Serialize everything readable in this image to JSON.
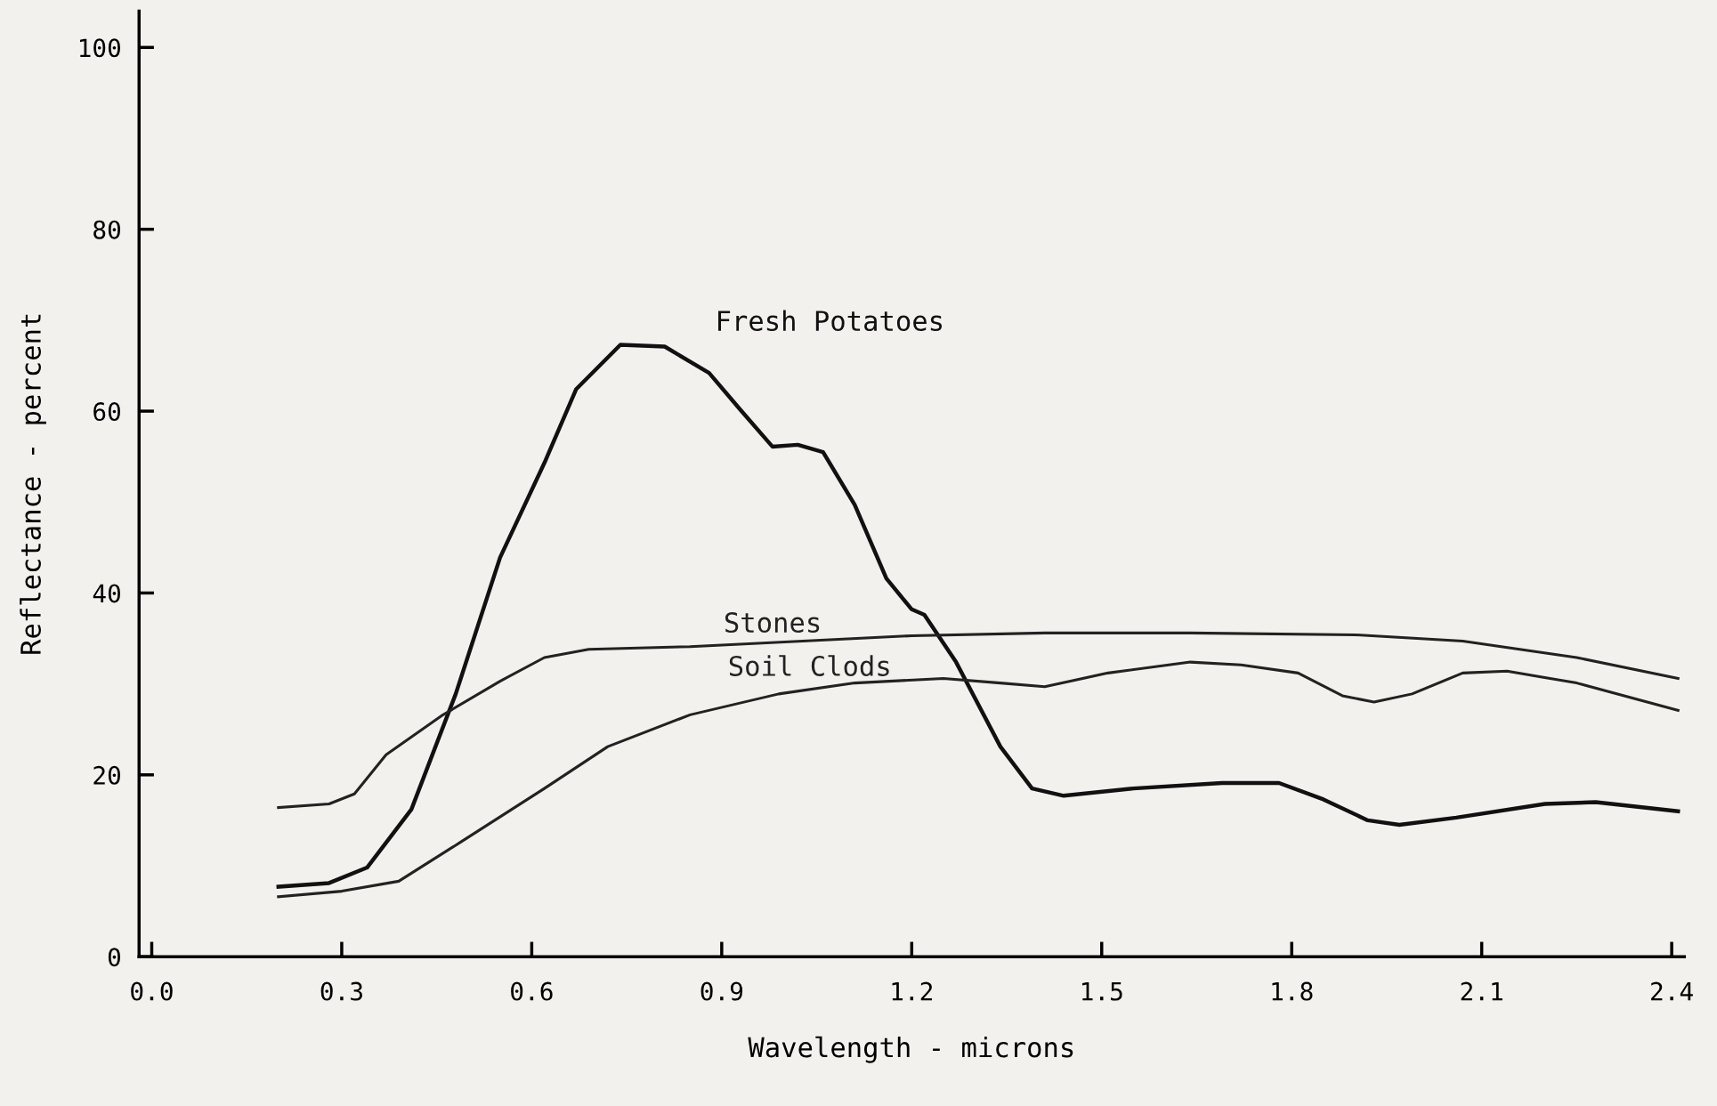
{
  "chart_data": {
    "type": "line",
    "xlabel": "Wavelength - microns",
    "ylabel": "Reflectance - percent",
    "xlim": [
      -0.02,
      2.42
    ],
    "ylim": [
      0,
      104
    ],
    "xticks": [
      {
        "value": 0.0,
        "label": "0.0"
      },
      0.3,
      0.6,
      0.9,
      1.2,
      1.5,
      1.8,
      2.1,
      2.4
    ],
    "yticks": [
      0,
      20,
      40,
      60,
      80,
      100
    ],
    "grid": false,
    "legend": false,
    "marker": "none",
    "line_style": "solid",
    "series": [
      {
        "name": "Fresh Potatoes",
        "color": "#111111",
        "x": [
          0.2,
          0.28,
          0.34,
          0.41,
          0.48,
          0.55,
          0.62,
          0.67,
          0.74,
          0.81,
          0.88,
          0.93,
          0.98,
          1.02,
          1.06,
          1.11,
          1.16,
          1.2,
          1.22,
          1.27,
          1.34,
          1.39,
          1.44,
          1.55,
          1.69,
          1.78,
          1.85,
          1.92,
          1.97,
          2.06,
          2.2,
          2.28,
          2.41
        ],
        "values": [
          7.7,
          8.1,
          9.8,
          16.2,
          28.9,
          43.9,
          54.3,
          62.4,
          67.3,
          67.1,
          64.2,
          60.1,
          56.1,
          56.3,
          55.5,
          49.7,
          41.6,
          38.2,
          37.6,
          32.4,
          23.1,
          18.5,
          17.7,
          18.5,
          19.1,
          19.1,
          17.3,
          15.0,
          14.5,
          15.3,
          16.8,
          17.0,
          16.0
        ]
      },
      {
        "name": "Stones",
        "color": "#222222",
        "x": [
          0.2,
          0.28,
          0.32,
          0.37,
          0.46,
          0.55,
          0.62,
          0.69,
          0.85,
          1.2,
          1.41,
          1.64,
          1.9,
          2.07,
          2.25,
          2.41
        ],
        "values": [
          16.4,
          16.8,
          17.9,
          22.2,
          26.6,
          30.3,
          32.9,
          33.8,
          34.1,
          35.3,
          35.6,
          35.6,
          35.4,
          34.7,
          32.9,
          30.6
        ]
      },
      {
        "name": "Soil Clods",
        "color": "#222222",
        "x": [
          0.2,
          0.3,
          0.39,
          0.49,
          0.62,
          0.72,
          0.85,
          0.99,
          1.11,
          1.25,
          1.34,
          1.41,
          1.51,
          1.64,
          1.72,
          1.81,
          1.88,
          1.93,
          1.99,
          2.07,
          2.14,
          2.25,
          2.41
        ],
        "values": [
          6.6,
          7.2,
          8.3,
          12.7,
          18.5,
          23.1,
          26.6,
          28.9,
          30.1,
          30.6,
          30.1,
          29.7,
          31.2,
          32.4,
          32.1,
          31.2,
          28.7,
          28.0,
          28.9,
          31.2,
          31.4,
          30.1,
          27.1
        ]
      }
    ]
  }
}
